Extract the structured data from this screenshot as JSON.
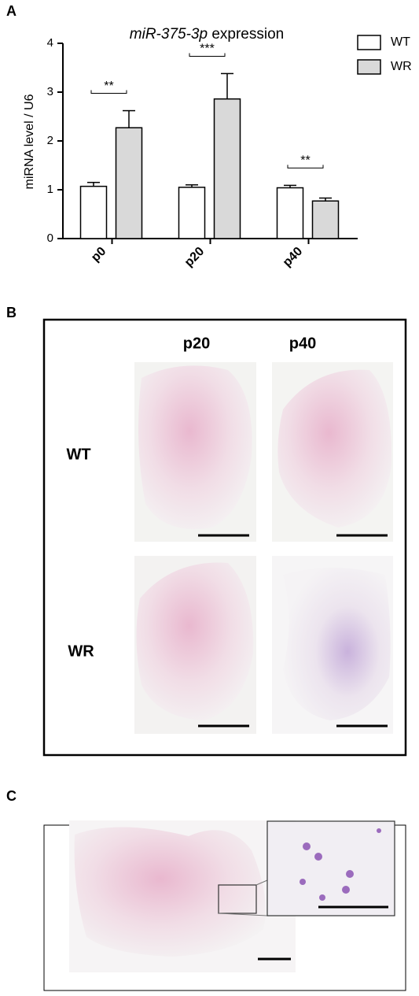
{
  "panel_labels": [
    "A",
    "B",
    "C"
  ],
  "chart_data": {
    "type": "bar",
    "title": "miR-375-3p expression",
    "y_label": "miRNA level / U6",
    "categories": [
      "p0",
      "p20",
      "p40"
    ],
    "series": [
      {
        "name": "WT",
        "color": "#ffffff",
        "values": [
          1.07,
          1.05,
          1.04
        ],
        "errors": [
          0.08,
          0.05,
          0.05
        ]
      },
      {
        "name": "WR",
        "color": "#d9d9d9",
        "values": [
          2.27,
          2.86,
          0.77
        ],
        "errors": [
          0.35,
          0.52,
          0.06
        ]
      }
    ],
    "annotations": [
      "**",
      "***",
      "**"
    ],
    "ylim": [
      0,
      4
    ],
    "yticks": [
      0,
      1,
      2,
      3,
      4
    ],
    "grid": false,
    "legend": "top-right"
  },
  "panel_b": {
    "columns": [
      "p20",
      "p40"
    ],
    "rows": [
      "WT",
      "WR"
    ]
  }
}
